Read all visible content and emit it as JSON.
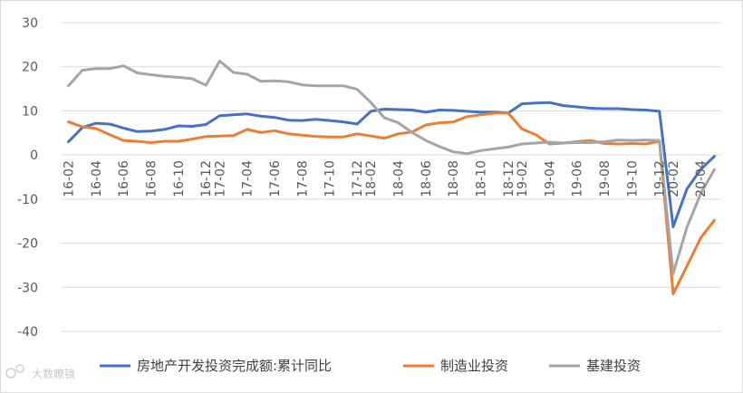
{
  "chart_data": {
    "type": "line",
    "title": "",
    "xlabel": "",
    "ylabel": "",
    "ylim": [
      -40,
      30
    ],
    "yticks": [
      30,
      20,
      10,
      0,
      -10,
      -20,
      -30,
      -40
    ],
    "grid": "horizontal",
    "legend_position": "bottom",
    "x": [
      "16-02",
      "16-03",
      "16-04",
      "16-05",
      "16-06",
      "16-07",
      "16-08",
      "16-09",
      "16-10",
      "16-11",
      "16-12",
      "17-02",
      "17-03",
      "17-04",
      "17-05",
      "17-06",
      "17-07",
      "17-08",
      "17-09",
      "17-10",
      "17-11",
      "17-12",
      "18-02",
      "18-03",
      "18-04",
      "18-05",
      "18-06",
      "18-07",
      "18-08",
      "18-09",
      "18-10",
      "18-11",
      "18-12",
      "19-02",
      "19-03",
      "19-04",
      "19-05",
      "19-06",
      "19-07",
      "19-08",
      "19-09",
      "19-10",
      "19-11",
      "19-12",
      "20-02",
      "20-03",
      "20-04",
      "20-05"
    ],
    "x_tick_labels": [
      "16-02",
      "16-04",
      "16-06",
      "16-08",
      "16-10",
      "16-12",
      "17-02",
      "17-04",
      "17-06",
      "17-08",
      "17-10",
      "17-12",
      "18-02",
      "18-04",
      "18-06",
      "18-08",
      "18-10",
      "18-12",
      "19-02",
      "19-04",
      "19-06",
      "19-08",
      "19-10",
      "19-12",
      "20-02",
      "20-04"
    ],
    "series": [
      {
        "name": "房地产开发投资完成额:累计同比",
        "color": "#4472C4",
        "values": [
          3.0,
          6.2,
          7.2,
          7.0,
          6.1,
          5.3,
          5.4,
          5.8,
          6.6,
          6.5,
          6.9,
          8.9,
          9.1,
          9.3,
          8.8,
          8.5,
          7.9,
          7.8,
          8.1,
          7.8,
          7.5,
          7.0,
          9.9,
          10.4,
          10.3,
          10.2,
          9.7,
          10.2,
          10.1,
          9.9,
          9.7,
          9.7,
          9.5,
          11.6,
          11.8,
          11.9,
          11.2,
          10.9,
          10.6,
          10.5,
          10.5,
          10.3,
          10.2,
          9.9,
          -16.3,
          -7.7,
          -3.3,
          -0.3
        ]
      },
      {
        "name": "制造业投资",
        "color": "#ED7D31",
        "values": [
          7.5,
          6.4,
          6.0,
          4.6,
          3.3,
          3.1,
          2.8,
          3.1,
          3.1,
          3.6,
          4.2,
          4.3,
          4.4,
          5.8,
          5.1,
          5.5,
          4.8,
          4.5,
          4.2,
          4.1,
          4.1,
          4.8,
          4.3,
          3.8,
          4.8,
          5.2,
          6.8,
          7.3,
          7.5,
          8.7,
          9.1,
          9.5,
          9.5,
          5.9,
          4.6,
          2.5,
          2.7,
          3.0,
          3.3,
          2.6,
          2.5,
          2.6,
          2.5,
          3.1,
          -31.5,
          -25.2,
          -18.8,
          -14.8
        ]
      },
      {
        "name": "基建投资",
        "color": "#A5A5A5",
        "values": [
          15.7,
          19.2,
          19.6,
          19.6,
          20.2,
          18.6,
          18.2,
          17.8,
          17.6,
          17.3,
          15.8,
          21.3,
          18.7,
          18.3,
          16.7,
          16.8,
          16.6,
          15.9,
          15.7,
          15.7,
          15.7,
          14.9,
          11.9,
          8.4,
          7.3,
          5.1,
          3.3,
          1.9,
          0.7,
          0.3,
          1.0,
          1.4,
          1.8,
          2.5,
          2.7,
          2.9,
          2.7,
          2.8,
          2.8,
          3.0,
          3.4,
          3.3,
          3.4,
          3.3,
          -26.9,
          -16.4,
          -8.8,
          -3.3
        ]
      }
    ]
  },
  "watermark": {
    "text": "大数瞭镜"
  }
}
